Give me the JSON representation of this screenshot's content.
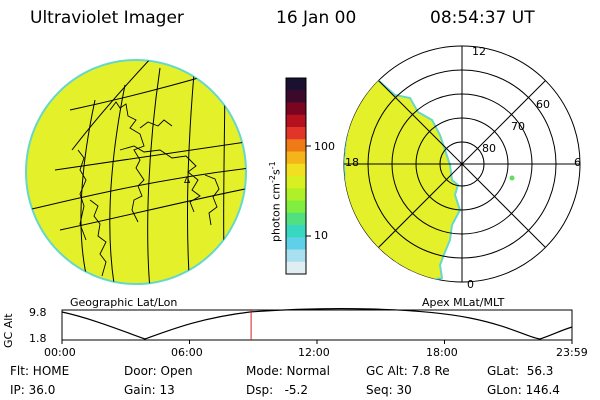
{
  "header": {
    "instrument": "Ultraviolet Imager",
    "date": "16 Jan 00",
    "time": "08:54:37 UT"
  },
  "colorbar": {
    "unit_label": "photon cm",
    "unit_sup1": "-2",
    "unit_mid": "s",
    "unit_sup2": "-1",
    "ticks": [
      "100",
      "10"
    ],
    "colors": [
      "#1a1030",
      "#3b0a2a",
      "#7a0520",
      "#b5101e",
      "#e03528",
      "#f07a18",
      "#f5b51a",
      "#f0e020",
      "#d8f020",
      "#b0f028",
      "#80ee40",
      "#50e080",
      "#38d8c0",
      "#60d0e8",
      "#a8e0f0",
      "#e0eef4"
    ]
  },
  "left_panel": {
    "caption": "Geographic Lat/Lon",
    "fill": "#e4f02a"
  },
  "right_panel": {
    "caption": "Apex MLat/MLT",
    "mlt_labels": {
      "top": "12",
      "left": "18",
      "right": "6",
      "bottom": "0"
    },
    "lat_labels": [
      "80",
      "70",
      "60"
    ],
    "fill": "#e4f02a"
  },
  "altitude_plot": {
    "y_label": "GC Alt",
    "y_ticks": [
      "9.8",
      "1.8"
    ],
    "x_ticks": [
      "00:00",
      "06:00",
      "12:00",
      "18:00",
      "23:59"
    ],
    "marker_time": "08:54"
  },
  "status": {
    "flt": "Flt: HOME",
    "ip": "IP: 36.0",
    "door": "Door: Open",
    "gain": "Gain: 13",
    "mode": "Mode: Normal",
    "dsp": "Dsp:   -5.2",
    "gc_alt": "GC Alt: 7.8 Re",
    "seq": "Seq: 30",
    "glat": "GLat:  56.3",
    "glon": "GLon: 146.4"
  }
}
